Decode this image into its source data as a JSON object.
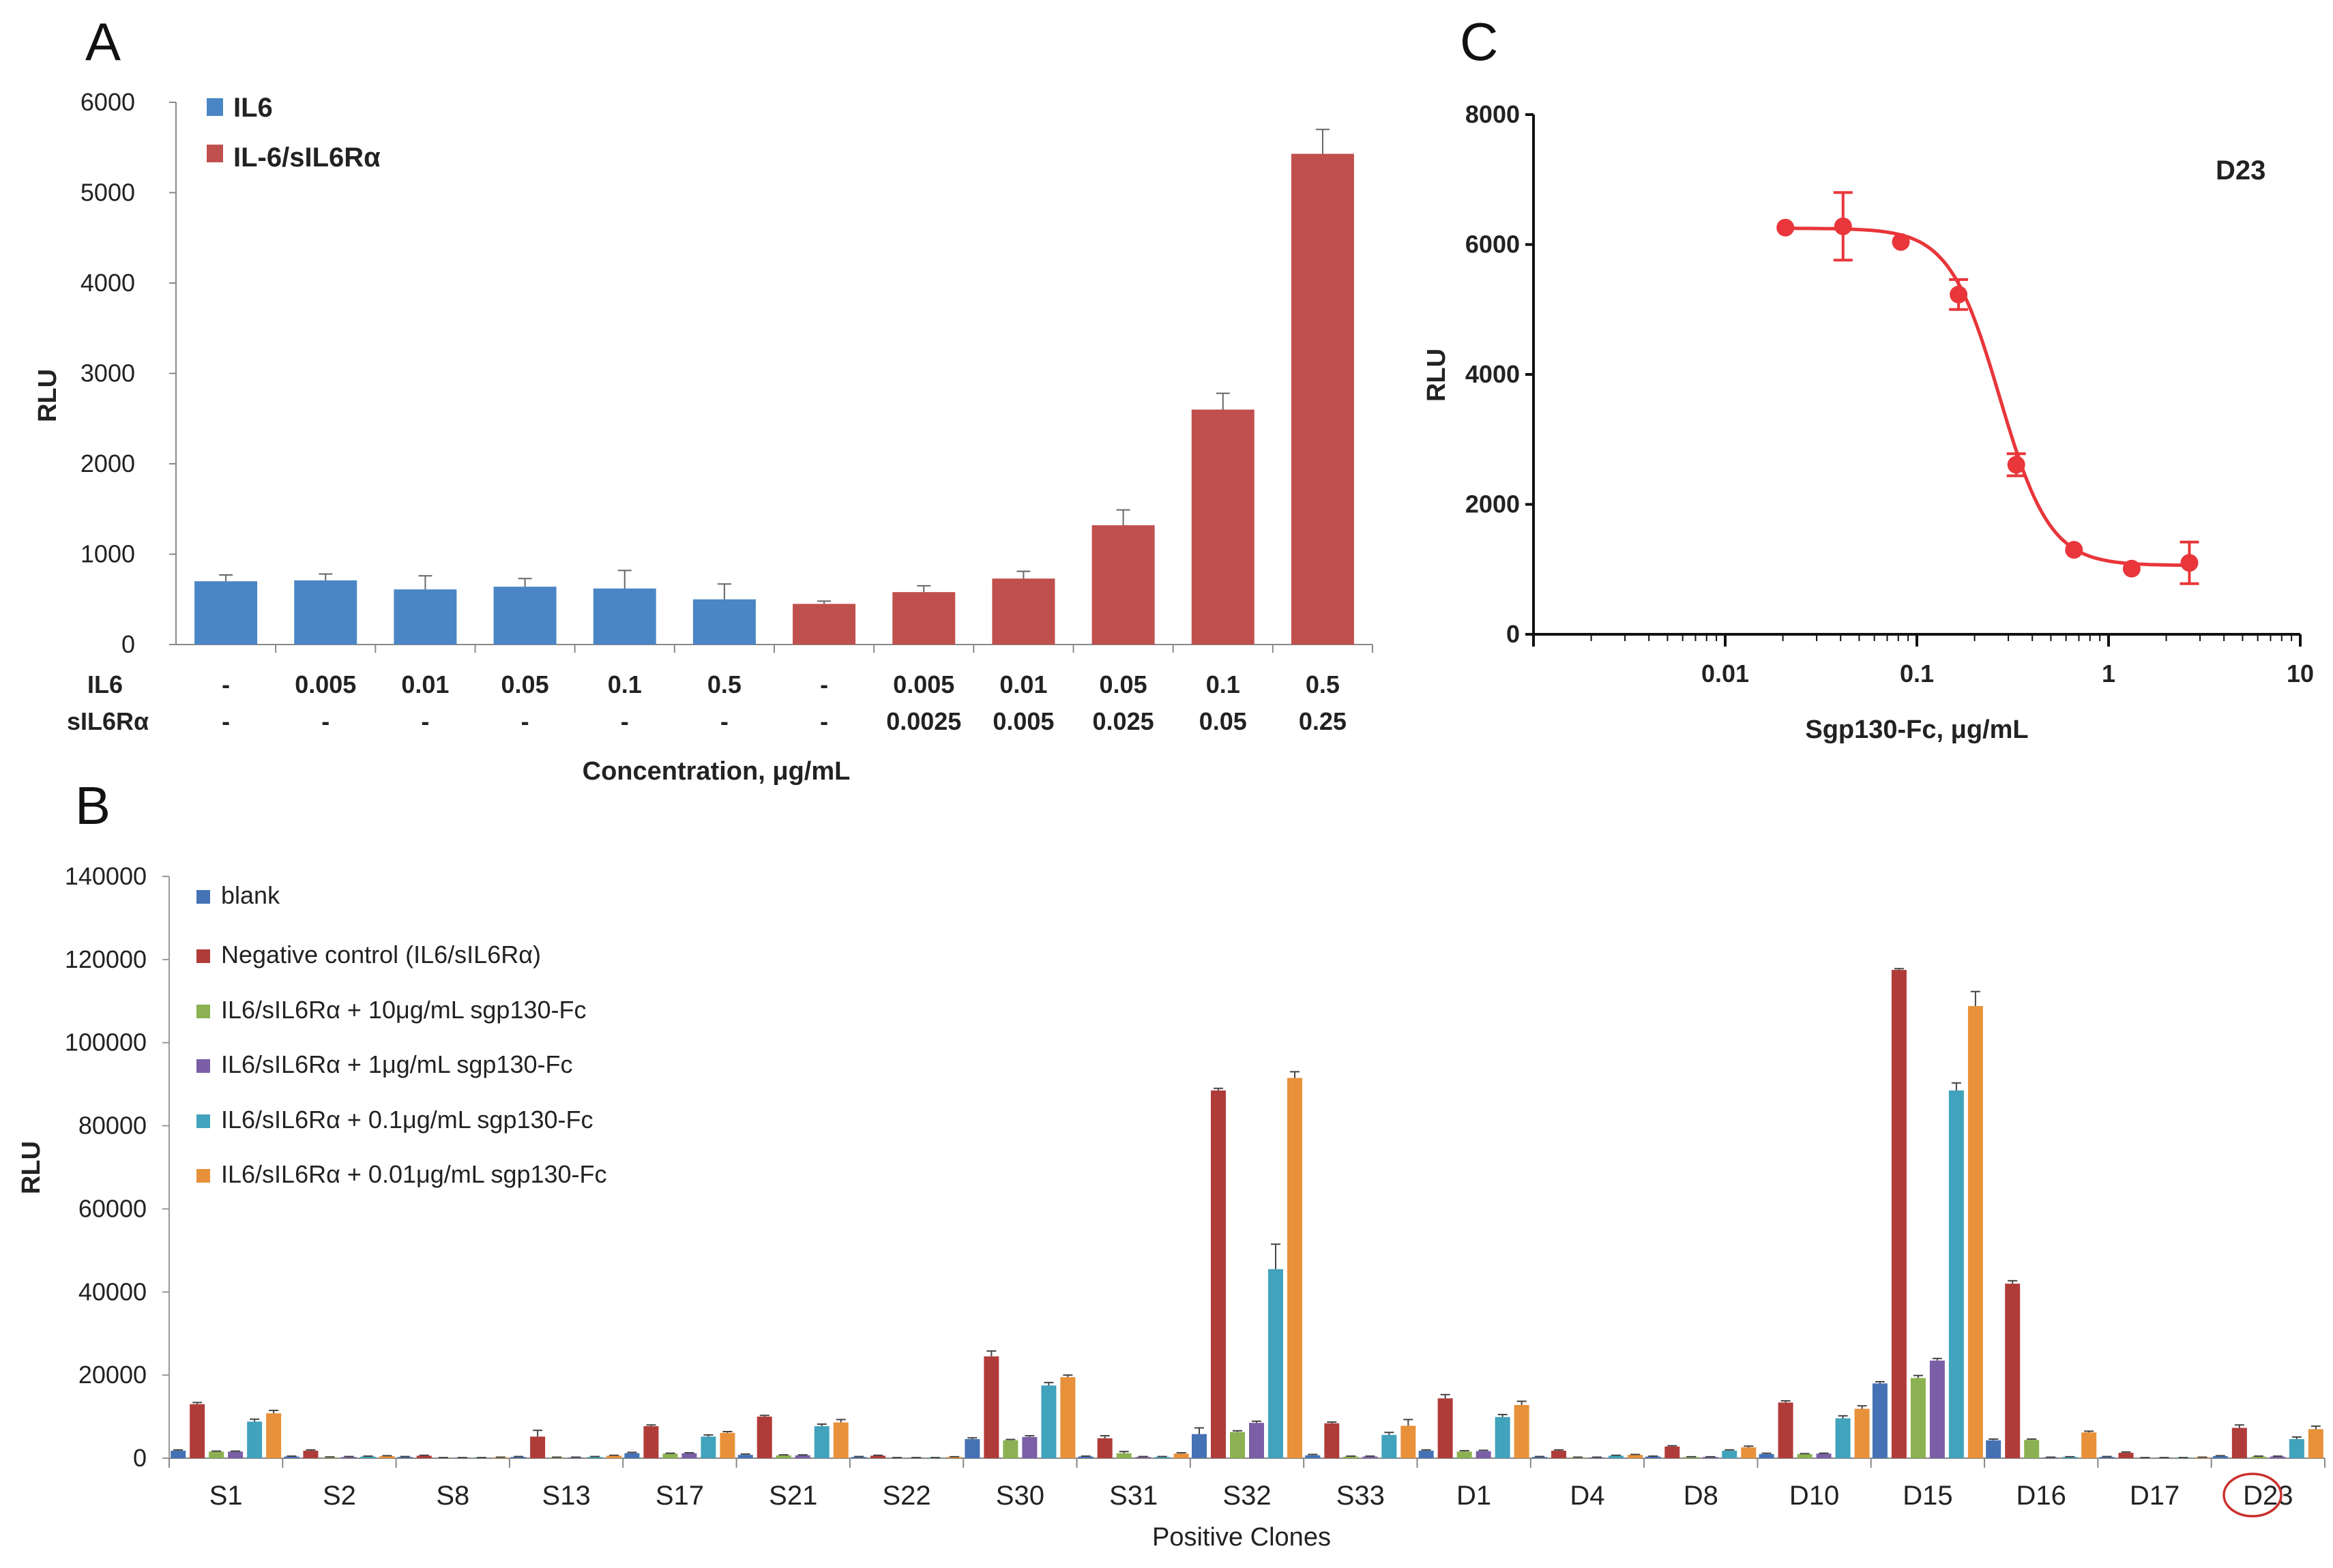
{
  "chart_data": [
    {
      "panel": "A",
      "type": "bar",
      "ylabel": "RLU",
      "xlabel": "Concentration, μg/mL",
      "ylim": [
        0,
        6000
      ],
      "yticks": [
        "0",
        "1000",
        "2000",
        "3000",
        "4000",
        "5000",
        "6000"
      ],
      "row_labels": [
        "IL6",
        "sIL6Rα"
      ],
      "il6_values": [
        "-",
        "0.005",
        "0.01",
        "0.05",
        "0.1",
        "0.5",
        "-",
        "0.005",
        "0.01",
        "0.05",
        "0.1",
        "0.5"
      ],
      "sil6ra_values": [
        "-",
        "-",
        "-",
        "-",
        "-",
        "-",
        "-",
        "0.0025",
        "0.005",
        "0.025",
        "0.05",
        "0.25"
      ],
      "series": [
        {
          "name": "IL6",
          "color": "#4a86c5",
          "bars": [
            0,
            1,
            2,
            3,
            4,
            5
          ]
        },
        {
          "name": "IL-6/sIL6Rα",
          "color": "#c0504d",
          "bars": [
            6,
            7,
            8,
            9,
            10,
            11
          ]
        }
      ],
      "values": [
        700,
        710,
        610,
        640,
        620,
        500,
        450,
        580,
        730,
        1320,
        2600,
        5430
      ],
      "errors": [
        70,
        70,
        150,
        90,
        200,
        170,
        30,
        70,
        80,
        170,
        180,
        270
      ]
    },
    {
      "panel": "B",
      "type": "bar",
      "ylabel": "RLU",
      "xlabel": "Positive Clones",
      "ylim": [
        0,
        140000
      ],
      "yticks": [
        "0",
        "20000",
        "40000",
        "60000",
        "80000",
        "100000",
        "120000",
        "140000"
      ],
      "categories": [
        "S1",
        "S2",
        "S8",
        "S13",
        "S17",
        "S21",
        "S22",
        "S30",
        "S31",
        "S32",
        "S33",
        "D1",
        "D4",
        "D8",
        "D10",
        "D15",
        "D16",
        "D17",
        "D23"
      ],
      "highlighted_category": "D23",
      "series": [
        {
          "name": "blank",
          "color": "#4472b4",
          "values": [
            1800,
            400,
            300,
            300,
            1200,
            800,
            300,
            4600,
            400,
            5800,
            700,
            1800,
            300,
            400,
            1000,
            18000,
            4300,
            300,
            500
          ],
          "errors": [
            200,
            100,
            100,
            100,
            200,
            200,
            100,
            300,
            100,
            1500,
            200,
            200,
            100,
            100,
            200,
            400,
            300,
            100,
            100
          ]
        },
        {
          "name": "Negative control (IL6/sIL6Rα)",
          "color": "#b03c3a",
          "values": [
            13000,
            1800,
            600,
            5200,
            7700,
            10000,
            600,
            24500,
            4800,
            88500,
            8400,
            14400,
            1800,
            2800,
            13400,
            117500,
            42000,
            1300,
            7300
          ],
          "errors": [
            400,
            200,
            100,
            1500,
            300,
            300,
            100,
            1300,
            600,
            500,
            300,
            900,
            200,
            200,
            400,
            300,
            700,
            200,
            700
          ]
        },
        {
          "name": "IL6/sIL6Rα + 10μg/mL sgp130-Fc",
          "color": "#8cb152",
          "values": [
            1600,
            200,
            100,
            200,
            1100,
            700,
            100,
            4300,
            1200,
            6300,
            400,
            1600,
            200,
            300,
            1000,
            19300,
            4400,
            100,
            400
          ],
          "errors": [
            100,
            100,
            50,
            50,
            100,
            100,
            50,
            200,
            400,
            300,
            100,
            200,
            50,
            50,
            100,
            600,
            200,
            50,
            100
          ]
        },
        {
          "name": "IL6/sIL6Rα + 1μg/mL sgp130-Fc",
          "color": "#7a5fa6",
          "values": [
            1600,
            300,
            100,
            200,
            1200,
            700,
            100,
            5100,
            300,
            8500,
            400,
            1700,
            200,
            300,
            1100,
            23500,
            200,
            100,
            400
          ],
          "errors": [
            100,
            100,
            50,
            50,
            100,
            100,
            50,
            300,
            100,
            400,
            100,
            200,
            50,
            50,
            100,
            500,
            50,
            50,
            100
          ]
        },
        {
          "name": "IL6/sIL6Rα + 0.1μg/mL sgp130-Fc",
          "color": "#41a3bc",
          "values": [
            8800,
            400,
            100,
            300,
            5200,
            7700,
            100,
            17500,
            300,
            45500,
            5600,
            9900,
            600,
            1800,
            9600,
            88500,
            300,
            100,
            4600
          ],
          "errors": [
            600,
            100,
            50,
            100,
            400,
            500,
            50,
            700,
            100,
            6000,
            600,
            600,
            100,
            200,
            600,
            1800,
            50,
            50,
            500
          ]
        },
        {
          "name": "IL6/sIL6Rα + 0.01μg/mL sgp130-Fc",
          "color": "#e8913a",
          "values": [
            10800,
            500,
            200,
            600,
            6100,
            8600,
            300,
            19500,
            1100,
            91500,
            7800,
            12800,
            800,
            2600,
            11900,
            108800,
            6200,
            200,
            7000
          ],
          "errors": [
            700,
            100,
            50,
            100,
            300,
            700,
            50,
            500,
            200,
            1500,
            1500,
            900,
            100,
            300,
            700,
            3500,
            300,
            50,
            700
          ]
        }
      ]
    },
    {
      "panel": "C",
      "type": "scatter",
      "annotation": "D23",
      "ylabel": "RLU",
      "xlabel": "Sgp130-Fc, μg/mL",
      "xscale": "log",
      "xlim": [
        0.001,
        10
      ],
      "ylim": [
        0,
        8000
      ],
      "xticks": [
        "0.01",
        "0.1",
        "1",
        "10"
      ],
      "yticks": [
        "0",
        "2000",
        "4000",
        "6000",
        "8000"
      ],
      "color": "#e8363a",
      "x": [
        0.0206,
        0.0412,
        0.0825,
        0.165,
        0.33,
        0.66,
        1.32,
        2.64
      ],
      "y": [
        6260,
        6280,
        6040,
        5230,
        2610,
        1300,
        1010,
        1100
      ],
      "errors": [
        0,
        520,
        0,
        230,
        170,
        0,
        0,
        320
      ],
      "fit": {
        "top": 6250,
        "bottom": 1060,
        "ec50": 0.27,
        "hill": 3.3
      }
    }
  ]
}
